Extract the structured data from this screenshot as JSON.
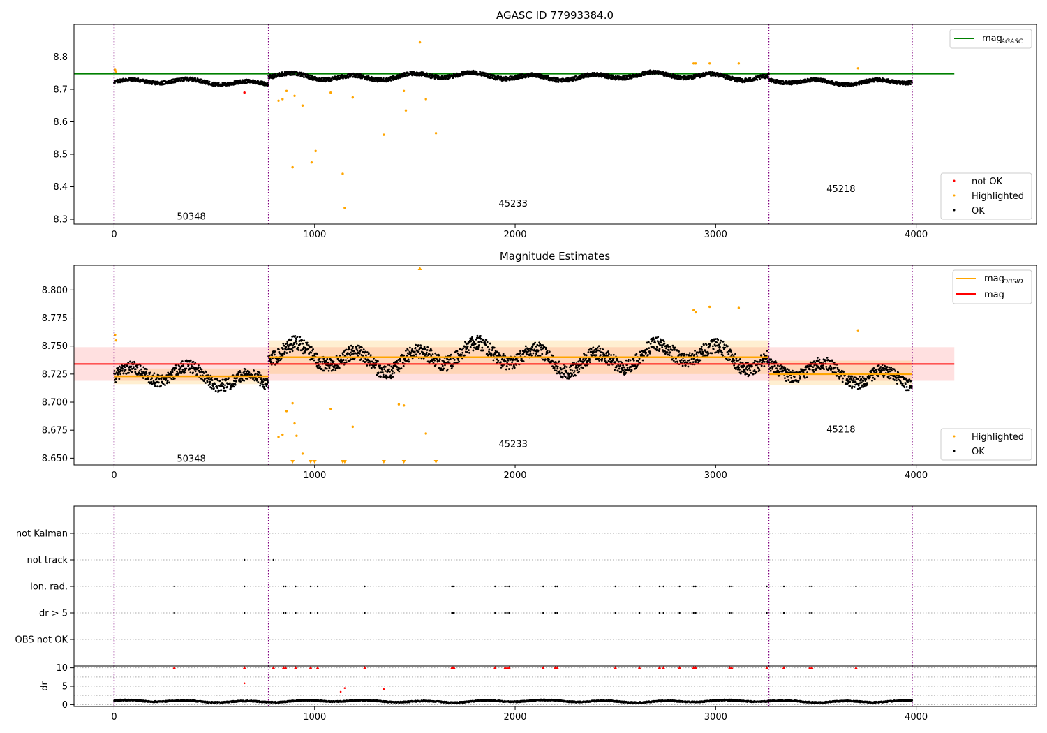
{
  "chart_data": [
    {
      "type": "scatter",
      "title": "AGASC ID 77993384.0",
      "xlim": [
        -200,
        4600
      ],
      "ylim": [
        8.285,
        8.9
      ],
      "xticks": [
        0,
        1000,
        2000,
        3000,
        4000
      ],
      "yticks": [
        8.3,
        8.4,
        8.5,
        8.6,
        8.7,
        8.8
      ],
      "obsid_boundaries": [
        0,
        770,
        3265,
        3980
      ],
      "obsid_labels": [
        {
          "text": "50348",
          "x": 385,
          "y": 8.31
        },
        {
          "text": "45233",
          "x": 1990,
          "y": 8.35
        },
        {
          "text": "45218",
          "x": 3625,
          "y": 8.395
        }
      ],
      "agasc_mag": {
        "value": 8.748,
        "x_range": [
          -200,
          4190
        ],
        "color": "#008000"
      },
      "series": [
        {
          "name": "not OK",
          "color": "#ff0000",
          "points": [
            [
              650,
              8.69
            ]
          ]
        },
        {
          "name": "Highlighted",
          "color": "#ffa500",
          "points": [
            [
              5,
              8.76
            ],
            [
              10,
              8.755
            ],
            [
              820,
              8.665
            ],
            [
              840,
              8.67
            ],
            [
              860,
              8.695
            ],
            [
              890,
              8.46
            ],
            [
              900,
              8.68
            ],
            [
              940,
              8.65
            ],
            [
              985,
              8.475
            ],
            [
              1005,
              8.51
            ],
            [
              1080,
              8.69
            ],
            [
              1140,
              8.44
            ],
            [
              1150,
              8.335
            ],
            [
              1190,
              8.675
            ],
            [
              1345,
              8.56
            ],
            [
              1445,
              8.695
            ],
            [
              1455,
              8.635
            ],
            [
              1525,
              8.845
            ],
            [
              1555,
              8.67
            ],
            [
              1605,
              8.565
            ],
            [
              2890,
              8.78
            ],
            [
              2900,
              8.78
            ],
            [
              2970,
              8.78
            ],
            [
              3115,
              8.78
            ],
            [
              3710,
              8.765
            ]
          ]
        },
        {
          "name": "OK",
          "color": "#000000",
          "segments": [
            {
              "x": [
                0,
                770
              ],
              "mean": 8.722,
              "amp": 0.012
            },
            {
              "x": [
                770,
                3265
              ],
              "mean": 8.74,
              "amp": 0.014
            },
            {
              "x": [
                3265,
                3980
              ],
              "mean": 8.725,
              "amp": 0.012
            }
          ]
        }
      ],
      "legend_top": {
        "entries": [
          "mag_AGASC"
        ],
        "position": "top-right"
      },
      "legend_bottom": {
        "entries": [
          "not OK",
          "Highlighted",
          "OK"
        ],
        "position": "bottom-right"
      }
    },
    {
      "type": "scatter",
      "title": "Magnitude Estimates",
      "xlim": [
        -200,
        4600
      ],
      "ylim": [
        8.644,
        8.822
      ],
      "xticks": [
        0,
        1000,
        2000,
        3000,
        4000
      ],
      "yticks": [
        8.65,
        8.675,
        8.7,
        8.725,
        8.75,
        8.775,
        8.8
      ],
      "obsid_boundaries": [
        0,
        770,
        3265,
        3980
      ],
      "obsid_labels": [
        {
          "text": "50348",
          "x": 385,
          "y": 8.65
        },
        {
          "text": "45233",
          "x": 1990,
          "y": 8.663
        },
        {
          "text": "45218",
          "x": 3625,
          "y": 8.676
        }
      ],
      "mag": {
        "value": 8.734,
        "band": [
          8.719,
          8.749
        ],
        "x_range": [
          -200,
          4190
        ],
        "color": "#ff0000"
      },
      "mag_obsid": [
        {
          "x": [
            0,
            770
          ],
          "value": 8.723,
          "band": [
            8.716,
            8.73
          ]
        },
        {
          "x": [
            770,
            3265
          ],
          "value": 8.74,
          "band": [
            8.725,
            8.755
          ]
        },
        {
          "x": [
            3265,
            3980
          ],
          "value": 8.725,
          "band": [
            8.715,
            8.737
          ]
        }
      ],
      "series": [
        {
          "name": "Highlighted",
          "color": "#ffa500",
          "points": [
            [
              5,
              8.76
            ],
            [
              10,
              8.755
            ],
            [
              820,
              8.669
            ],
            [
              840,
              8.671
            ],
            [
              860,
              8.692
            ],
            [
              890,
              8.699
            ],
            [
              900,
              8.681
            ],
            [
              910,
              8.67
            ],
            [
              940,
              8.654
            ],
            [
              1080,
              8.694
            ],
            [
              1190,
              8.678
            ],
            [
              1420,
              8.698
            ],
            [
              1445,
              8.697
            ],
            [
              1555,
              8.672
            ],
            [
              2890,
              8.782
            ],
            [
              2900,
              8.78
            ],
            [
              2970,
              8.785
            ],
            [
              3115,
              8.784
            ],
            [
              3710,
              8.764
            ]
          ],
          "clipped_low_x": [
            890,
            980,
            1000,
            1140,
            1150,
            1345,
            1445,
            1605
          ],
          "clipped_high_x": [
            1525
          ]
        },
        {
          "name": "OK",
          "color": "#000000"
        }
      ],
      "legend_top": {
        "entries": [
          "mag_OBSID",
          "mag"
        ],
        "position": "top-right"
      },
      "legend_bottom": {
        "entries": [
          "Highlighted",
          "OK"
        ],
        "position": "bottom-right"
      }
    },
    {
      "type": "scatter",
      "title": "",
      "xlim": [
        -200,
        4600
      ],
      "xticks": [
        0,
        1000,
        2000,
        3000,
        4000
      ],
      "flag_rows": [
        "not Kalman",
        "not track",
        "Ion. rad.",
        "dr > 5",
        "OBS not OK"
      ],
      "flags": {
        "not Kalman": [],
        "not track": [
          650,
          795
        ],
        "Ion. rad.": [
          300,
          650,
          845,
          855,
          905,
          980,
          1015,
          1250,
          1685,
          1690,
          1695,
          1900,
          1950,
          1960,
          1970,
          2140,
          2200,
          2210,
          2500,
          2620,
          2720,
          2740,
          2820,
          2890,
          2900,
          3070,
          3080,
          3255,
          3340,
          3470,
          3480,
          3700
        ],
        "dr > 5": [
          300,
          650,
          845,
          855,
          905,
          980,
          1015,
          1250,
          1685,
          1690,
          1695,
          1900,
          1950,
          1960,
          1970,
          2140,
          2200,
          2210,
          2500,
          2620,
          2720,
          2740,
          2820,
          2890,
          2900,
          3070,
          3080,
          3255,
          3340,
          3470,
          3480,
          3700
        ],
        "OBS not OK": []
      },
      "obsid_boundaries": [
        0,
        770,
        3265,
        3980
      ]
    },
    {
      "type": "scatter",
      "title": "",
      "ylabel": "dr",
      "xlim": [
        -200,
        4600
      ],
      "ylim": [
        -0.5,
        10.5
      ],
      "xticks": [
        0,
        1000,
        2000,
        3000,
        4000
      ],
      "yticks": [
        0,
        5,
        10
      ],
      "clipped_at_10": [
        300,
        650,
        795,
        845,
        855,
        905,
        980,
        1015,
        1250,
        1685,
        1690,
        1695,
        1900,
        1950,
        1960,
        1970,
        2140,
        2200,
        2210,
        2500,
        2620,
        2720,
        2740,
        2820,
        2890,
        2900,
        3070,
        3080,
        3255,
        3340,
        3470,
        3480,
        3700
      ],
      "outliers": [
        [
          650,
          5.8
        ],
        [
          1130,
          3.5
        ],
        [
          1150,
          4.5
        ],
        [
          1345,
          4.2
        ]
      ],
      "baseline": {
        "mean": 0.9,
        "amp": 0.4
      },
      "obsid_boundaries": [
        0,
        770,
        3265,
        3980
      ]
    }
  ],
  "legend_labels": {
    "mag_agasc_main": "mag",
    "mag_agasc_sub": "AGASC",
    "mag_obsid_main": "mag",
    "mag_obsid_sub": "OBSID",
    "mag": "mag",
    "not_ok": "not OK",
    "highlighted": "Highlighted",
    "ok": "OK"
  }
}
